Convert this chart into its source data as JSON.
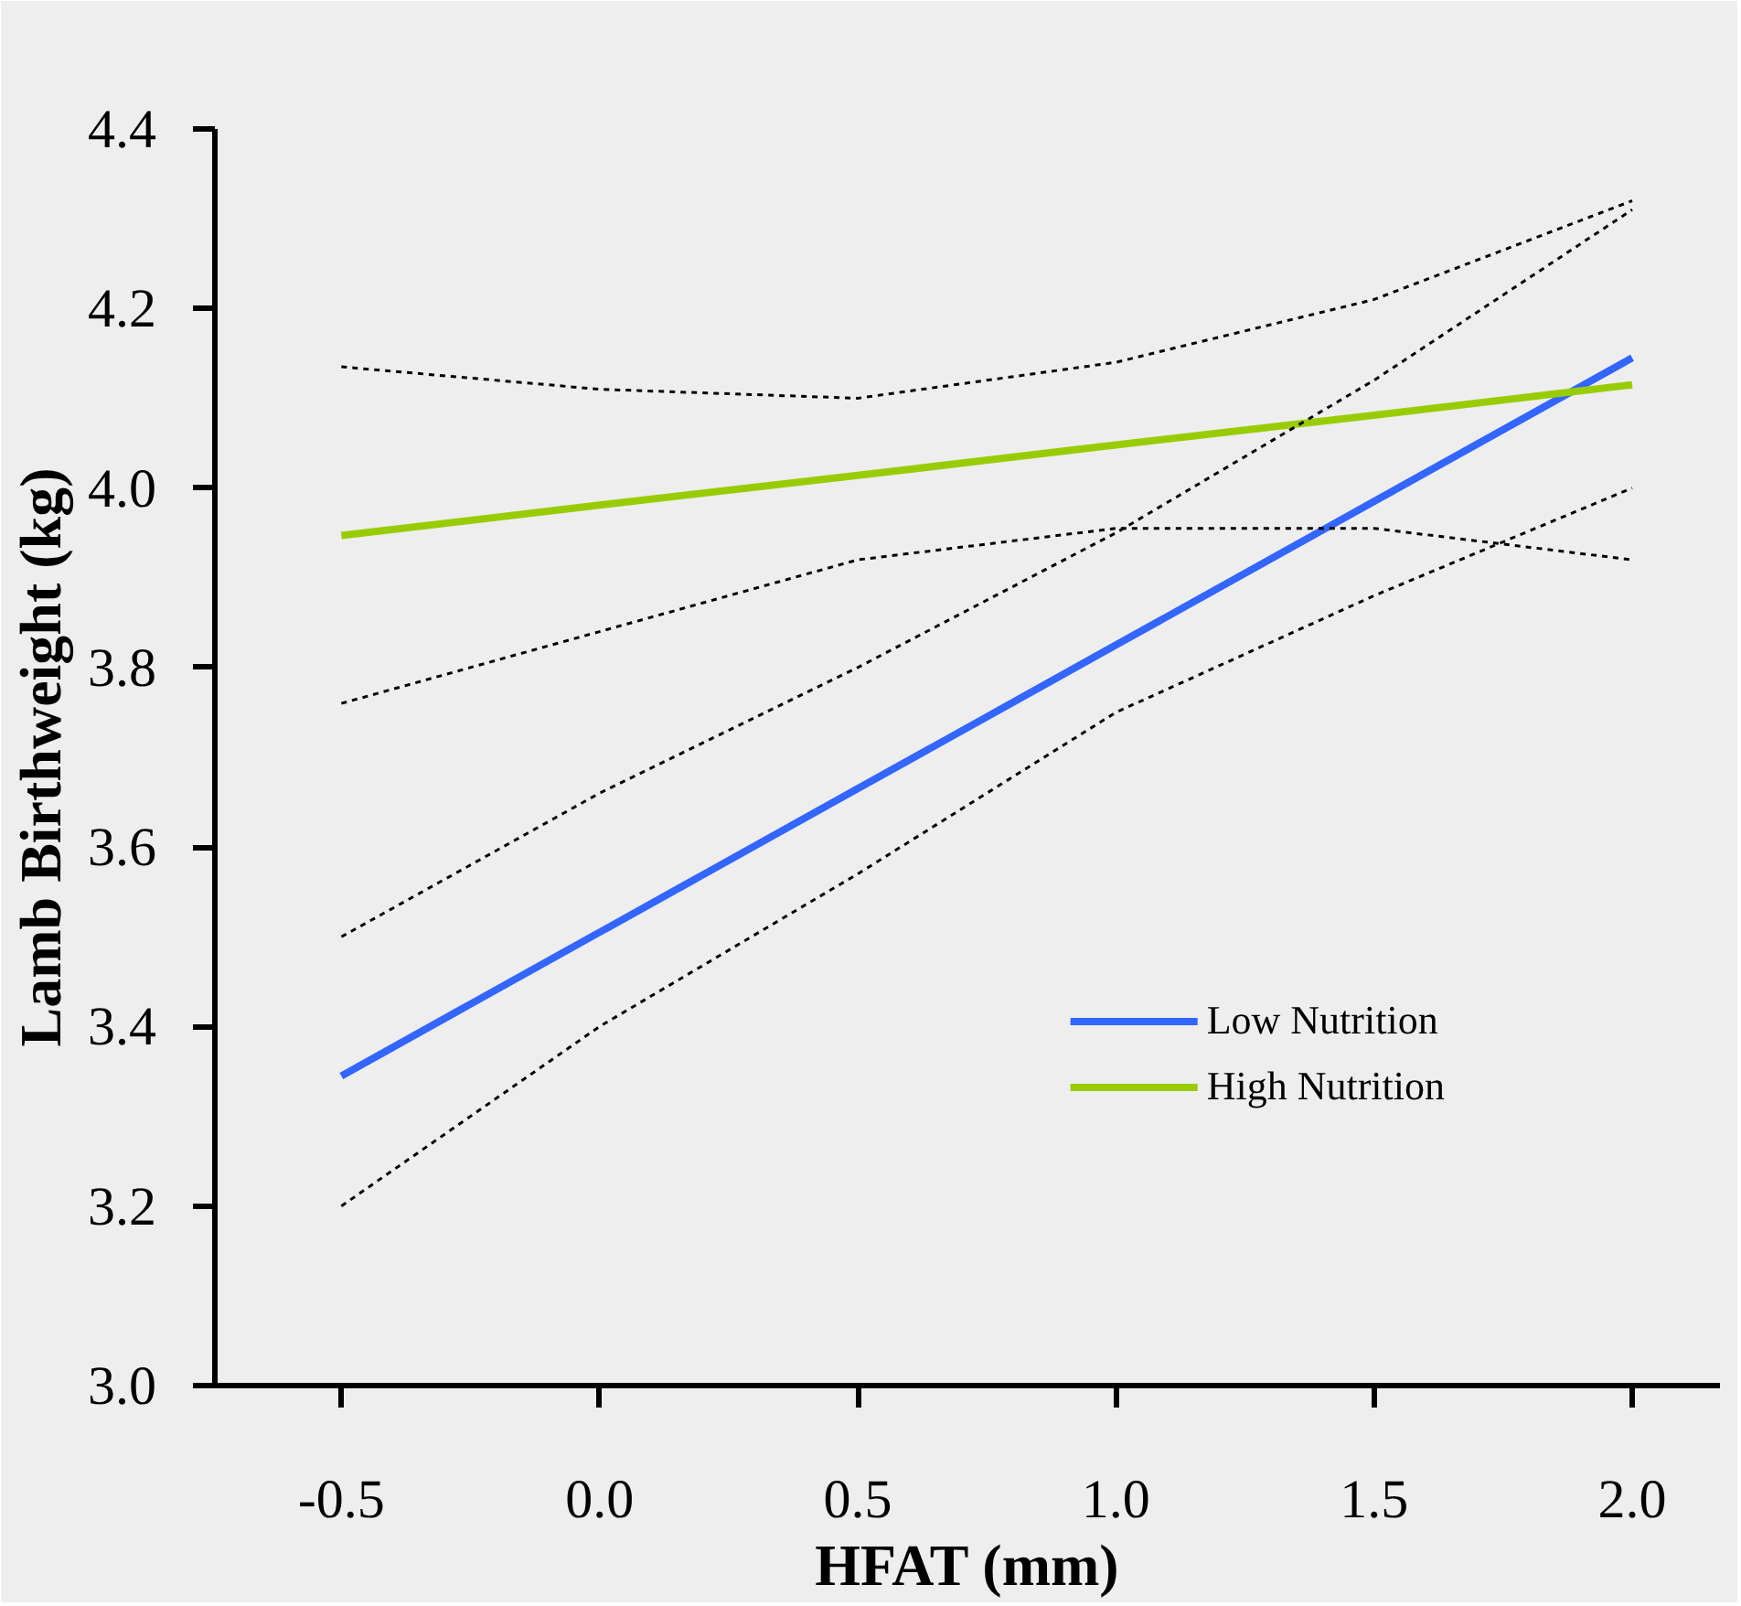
{
  "chart_data": {
    "type": "line",
    "xlabel": "HFAT (mm)",
    "ylabel": "Lamb Birthweight (kg)",
    "x": [
      -0.5,
      0.0,
      0.5,
      1.0,
      1.5,
      2.0
    ],
    "xlim": [
      -0.745,
      2.17
    ],
    "xticks": [
      {
        "value": -0.5,
        "label": "-0.5"
      },
      {
        "value": 0,
        "label": "0.0"
      },
      {
        "value": 0.5,
        "label": "0.5"
      },
      {
        "value": 1,
        "label": "1.0"
      },
      {
        "value": 1.5,
        "label": "1.5"
      },
      {
        "value": 2,
        "label": "2.0"
      }
    ],
    "ylim": [
      3.0,
      4.4
    ],
    "yticks": [
      {
        "value": 3,
        "label": "3.0"
      },
      {
        "value": 3.2,
        "label": "3.2"
      },
      {
        "value": 3.4,
        "label": "3.4"
      },
      {
        "value": 3.6,
        "label": "3.6"
      },
      {
        "value": 3.8,
        "label": "3.8"
      },
      {
        "value": 4,
        "label": "4.0"
      },
      {
        "value": 4.2,
        "label": "4.2"
      },
      {
        "value": 4.4,
        "label": "4.4"
      }
    ],
    "series": [
      {
        "name": "Low Nutrition",
        "color": "#3366ff",
        "values": [
          3.345,
          3.505,
          3.665,
          3.825,
          3.985,
          4.145
        ]
      },
      {
        "name": "High Nutrition",
        "color": "#99cc00",
        "values": [
          3.947,
          3.981,
          4.014,
          4.048,
          4.081,
          4.115
        ]
      },
      {
        "color": "#000000",
        "line_style": "dotted",
        "values": [
          3.2,
          3.4,
          3.57,
          3.75,
          3.88,
          4.0
        ]
      },
      {
        "color": "#000000",
        "line_style": "dotted",
        "values": [
          3.5,
          3.66,
          3.8,
          3.95,
          4.12,
          4.31
        ]
      },
      {
        "color": "#000000",
        "line_style": "dotted",
        "values": [
          3.76,
          3.84,
          3.92,
          3.955,
          3.955,
          3.92
        ]
      },
      {
        "color": "#000000",
        "line_style": "dotted",
        "values": [
          4.135,
          4.11,
          4.1,
          4.14,
          4.21,
          4.32
        ]
      }
    ],
    "grid": false,
    "legend": "bottom right",
    "marker": "none",
    "line_style": "solid"
  }
}
